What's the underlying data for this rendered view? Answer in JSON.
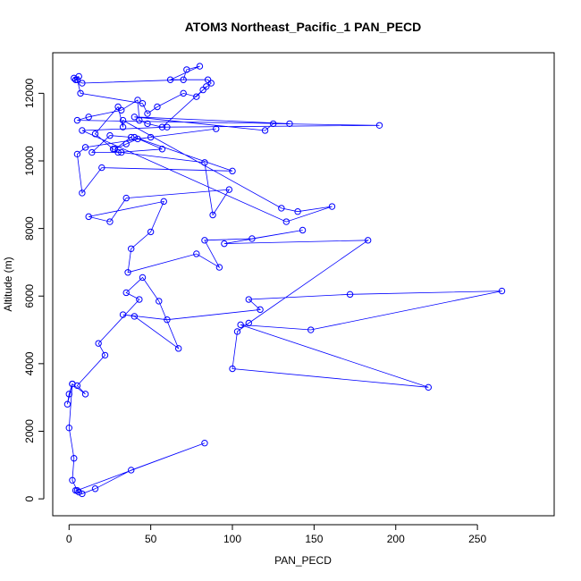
{
  "chart_data": {
    "type": "line",
    "title": "ATOM3 Northeast_Pacific_1 PAN_PECD",
    "xlabel": "PAN_PECD",
    "ylabel": "Altitude (m)",
    "xlim": [
      -10,
      297
    ],
    "ylim": [
      -500,
      13200
    ],
    "xticks": [
      0,
      50,
      100,
      150,
      200,
      250
    ],
    "yticks": [
      0,
      2000,
      4000,
      6000,
      8000,
      10000,
      12000
    ],
    "grid": false,
    "color": "#0000ff",
    "series": [
      {
        "x": [
          4,
          6,
          8,
          16,
          38,
          83,
          5,
          2,
          3,
          0,
          2,
          -1,
          0,
          2,
          10,
          5,
          22,
          18,
          43,
          35,
          45,
          55,
          67,
          40,
          33,
          60,
          117,
          110,
          172,
          265,
          148,
          105,
          220,
          100,
          103,
          110,
          183,
          95,
          143,
          112,
          83,
          92,
          78,
          36,
          38,
          50,
          58,
          12,
          25,
          35,
          98,
          88,
          83,
          32,
          14,
          25,
          38,
          28,
          35,
          42,
          90,
          50,
          10,
          5,
          8,
          20,
          100,
          40,
          57,
          30,
          27,
          16,
          30,
          33,
          33,
          130,
          140,
          161,
          133,
          8,
          60,
          190,
          125,
          120,
          40,
          135,
          5,
          12,
          32,
          42,
          43,
          48,
          57,
          82,
          87,
          85,
          62,
          80,
          72,
          70,
          8,
          4,
          6,
          3,
          5,
          7,
          45,
          48,
          54,
          70,
          78,
          84
        ],
        "y": [
          250,
          200,
          150,
          300,
          850,
          1650,
          250,
          550,
          1200,
          2100,
          3400,
          2800,
          3100,
          3400,
          3100,
          3350,
          4250,
          4600,
          5900,
          6100,
          6550,
          5850,
          4450,
          5400,
          5450,
          5300,
          5600,
          5900,
          6050,
          6150,
          5000,
          5150,
          3300,
          3850,
          4950,
          5200,
          7650,
          7550,
          7950,
          7700,
          7650,
          6850,
          7250,
          6700,
          7400,
          7900,
          8800,
          8350,
          8200,
          8900,
          9150,
          8400,
          9950,
          10250,
          10250,
          10750,
          10700,
          10350,
          10500,
          10650,
          10950,
          10700,
          10400,
          10200,
          9050,
          9800,
          9700,
          10700,
          10350,
          10250,
          10350,
          10800,
          11600,
          11000,
          11200,
          8600,
          8500,
          8650,
          8200,
          10900,
          11000,
          11050,
          11100,
          10900,
          11300,
          11100,
          11200,
          11300,
          11500,
          11800,
          11200,
          11100,
          11000,
          12100,
          12300,
          12400,
          12400,
          12800,
          12700,
          12400,
          12300,
          12400,
          12500,
          12450,
          12400,
          12000,
          11700,
          11400,
          11600,
          12000,
          11900,
          12200
        ]
      }
    ]
  }
}
